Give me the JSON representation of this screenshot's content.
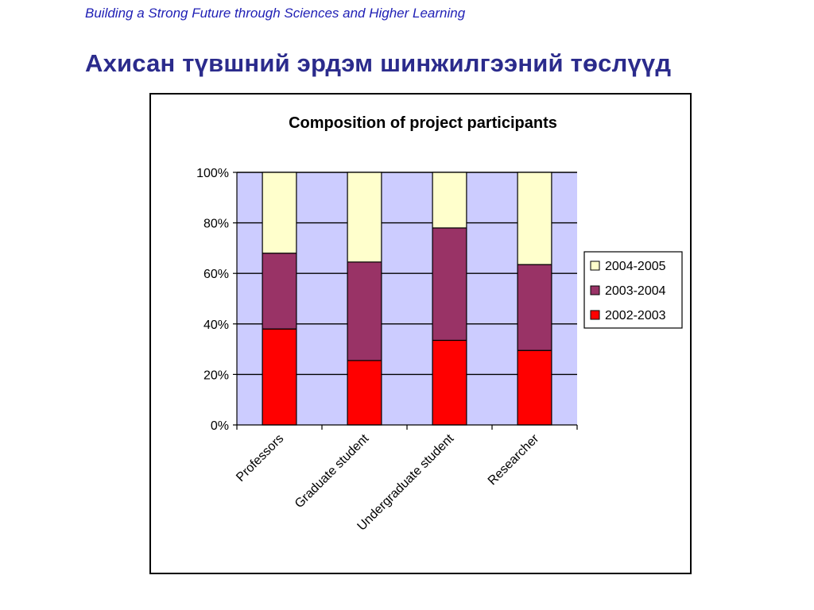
{
  "header": {
    "tagline": "Building a Strong Future through Sciences and Higher Learning",
    "title": "Ахисан түвшний эрдэм шинжилгээний төслүүд"
  },
  "colors": {
    "plot_background": "#ccccff",
    "gridline": "#000000",
    "bar_outline": "#000000"
  },
  "chart_data": {
    "type": "bar",
    "stacked": true,
    "percent_stacked": true,
    "title": "Composition of project participants",
    "xlabel": "",
    "ylabel": "",
    "ylim": [
      0,
      100
    ],
    "yticks": [
      "0%",
      "20%",
      "40%",
      "60%",
      "80%",
      "100%"
    ],
    "categories": [
      "Professors",
      "Graduate student",
      "Undergraduate student",
      "Researcher"
    ],
    "series": [
      {
        "name": "2002-2003",
        "color": "#ff0000",
        "values": [
          38,
          25.5,
          33.5,
          29.5
        ]
      },
      {
        "name": "2003-2004",
        "color": "#993366",
        "values": [
          30,
          39,
          44.5,
          34
        ]
      },
      {
        "name": "2004-2005",
        "color": "#ffffcc",
        "values": [
          32,
          35.5,
          22,
          36.5
        ]
      }
    ],
    "legend": {
      "placement": "right",
      "order": [
        "2004-2005",
        "2003-2004",
        "2002-2003"
      ]
    },
    "grid": true
  }
}
